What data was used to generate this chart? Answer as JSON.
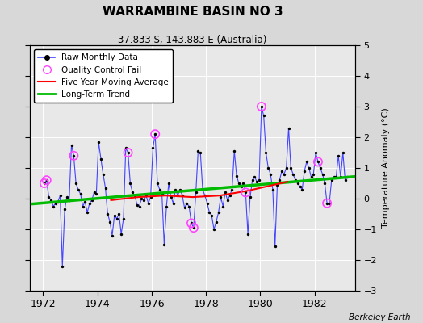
{
  "title": "WARRAMBINE BASIN NO 3",
  "subtitle": "37.833 S, 143.883 E (Australia)",
  "ylabel": "Temperature Anomaly (°C)",
  "attribution": "Berkeley Earth",
  "xlim": [
    1971.5,
    1983.5
  ],
  "ylim": [
    -3,
    5
  ],
  "yticks": [
    -3,
    -2,
    -1,
    0,
    1,
    2,
    3,
    4,
    5
  ],
  "xticks": [
    1972,
    1974,
    1976,
    1978,
    1980,
    1982
  ],
  "bg_color": "#d8d8d8",
  "plot_bg_color": "#e8e8e8",
  "raw_line_color": "#4444ff",
  "raw_dot_color": "#000000",
  "qc_fail_color": "#ff44ff",
  "moving_avg_color": "#ff0000",
  "trend_color": "#00bb00",
  "raw_data": [
    [
      1972.042,
      0.5
    ],
    [
      1972.125,
      0.6
    ],
    [
      1972.208,
      0.05
    ],
    [
      1972.292,
      -0.05
    ],
    [
      1972.375,
      -0.25
    ],
    [
      1972.458,
      -0.15
    ],
    [
      1972.542,
      -0.1
    ],
    [
      1972.625,
      0.1
    ],
    [
      1972.708,
      -2.2
    ],
    [
      1972.792,
      -0.35
    ],
    [
      1972.875,
      0.05
    ],
    [
      1972.958,
      -0.05
    ],
    [
      1973.042,
      1.75
    ],
    [
      1973.125,
      1.4
    ],
    [
      1973.208,
      0.5
    ],
    [
      1973.292,
      0.3
    ],
    [
      1973.375,
      0.15
    ],
    [
      1973.458,
      -0.25
    ],
    [
      1973.542,
      -0.1
    ],
    [
      1973.625,
      -0.45
    ],
    [
      1973.708,
      -0.15
    ],
    [
      1973.792,
      -0.05
    ],
    [
      1973.875,
      0.2
    ],
    [
      1973.958,
      0.15
    ],
    [
      1974.042,
      1.85
    ],
    [
      1974.125,
      1.3
    ],
    [
      1974.208,
      0.8
    ],
    [
      1974.292,
      0.35
    ],
    [
      1974.375,
      -0.5
    ],
    [
      1974.458,
      -0.75
    ],
    [
      1974.542,
      -1.2
    ],
    [
      1974.625,
      -0.55
    ],
    [
      1974.708,
      -0.65
    ],
    [
      1974.792,
      -0.5
    ],
    [
      1974.875,
      -1.15
    ],
    [
      1974.958,
      -0.65
    ],
    [
      1975.042,
      1.65
    ],
    [
      1975.125,
      1.5
    ],
    [
      1975.208,
      0.5
    ],
    [
      1975.292,
      0.2
    ],
    [
      1975.375,
      0.1
    ],
    [
      1975.458,
      -0.2
    ],
    [
      1975.542,
      -0.25
    ],
    [
      1975.625,
      0.0
    ],
    [
      1975.708,
      -0.05
    ],
    [
      1975.792,
      0.1
    ],
    [
      1975.875,
      -0.15
    ],
    [
      1975.958,
      0.05
    ],
    [
      1976.042,
      1.65
    ],
    [
      1976.125,
      2.1
    ],
    [
      1976.208,
      0.5
    ],
    [
      1976.292,
      0.3
    ],
    [
      1976.375,
      0.15
    ],
    [
      1976.458,
      -1.5
    ],
    [
      1976.542,
      -0.25
    ],
    [
      1976.625,
      0.5
    ],
    [
      1976.708,
      0.05
    ],
    [
      1976.792,
      -0.15
    ],
    [
      1976.875,
      0.3
    ],
    [
      1976.958,
      0.1
    ],
    [
      1977.042,
      0.3
    ],
    [
      1977.125,
      0.1
    ],
    [
      1977.208,
      -0.3
    ],
    [
      1977.292,
      -0.15
    ],
    [
      1977.375,
      -0.25
    ],
    [
      1977.458,
      -0.8
    ],
    [
      1977.542,
      -0.95
    ],
    [
      1977.625,
      0.2
    ],
    [
      1977.708,
      1.55
    ],
    [
      1977.792,
      1.5
    ],
    [
      1977.875,
      0.3
    ],
    [
      1977.958,
      0.1
    ],
    [
      1978.042,
      -0.15
    ],
    [
      1978.125,
      -0.45
    ],
    [
      1978.208,
      -0.55
    ],
    [
      1978.292,
      -1.0
    ],
    [
      1978.375,
      -0.75
    ],
    [
      1978.458,
      -0.45
    ],
    [
      1978.542,
      0.05
    ],
    [
      1978.625,
      -0.25
    ],
    [
      1978.708,
      0.2
    ],
    [
      1978.792,
      -0.05
    ],
    [
      1978.875,
      0.1
    ],
    [
      1978.958,
      0.3
    ],
    [
      1979.042,
      1.55
    ],
    [
      1979.125,
      0.75
    ],
    [
      1979.208,
      0.5
    ],
    [
      1979.292,
      0.4
    ],
    [
      1979.375,
      0.5
    ],
    [
      1979.458,
      0.2
    ],
    [
      1979.542,
      -1.15
    ],
    [
      1979.625,
      0.05
    ],
    [
      1979.708,
      0.6
    ],
    [
      1979.792,
      0.7
    ],
    [
      1979.875,
      0.55
    ],
    [
      1979.958,
      0.6
    ],
    [
      1980.042,
      3.0
    ],
    [
      1980.125,
      2.7
    ],
    [
      1980.208,
      1.5
    ],
    [
      1980.292,
      1.0
    ],
    [
      1980.375,
      0.8
    ],
    [
      1980.458,
      0.3
    ],
    [
      1980.542,
      -1.55
    ],
    [
      1980.625,
      0.45
    ],
    [
      1980.708,
      0.6
    ],
    [
      1980.792,
      0.9
    ],
    [
      1980.875,
      0.8
    ],
    [
      1980.958,
      1.0
    ],
    [
      1981.042,
      2.3
    ],
    [
      1981.125,
      1.0
    ],
    [
      1981.208,
      0.8
    ],
    [
      1981.292,
      0.6
    ],
    [
      1981.375,
      0.5
    ],
    [
      1981.458,
      0.4
    ],
    [
      1981.542,
      0.3
    ],
    [
      1981.625,
      0.9
    ],
    [
      1981.708,
      1.2
    ],
    [
      1981.792,
      1.0
    ],
    [
      1981.875,
      0.7
    ],
    [
      1981.958,
      0.8
    ],
    [
      1982.042,
      1.5
    ],
    [
      1982.125,
      1.2
    ],
    [
      1982.208,
      1.0
    ],
    [
      1982.292,
      0.8
    ],
    [
      1982.375,
      0.5
    ],
    [
      1982.458,
      -0.15
    ],
    [
      1982.542,
      -0.15
    ],
    [
      1982.625,
      0.6
    ],
    [
      1982.708,
      0.7
    ],
    [
      1982.792,
      0.7
    ],
    [
      1982.875,
      1.4
    ],
    [
      1982.958,
      0.7
    ],
    [
      1983.042,
      1.5
    ],
    [
      1983.125,
      0.6
    ],
    [
      1983.208,
      0.7
    ]
  ],
  "qc_fail_points": [
    [
      1972.042,
      0.5
    ],
    [
      1972.125,
      0.6
    ],
    [
      1973.125,
      1.4
    ],
    [
      1975.125,
      1.5
    ],
    [
      1976.125,
      2.1
    ],
    [
      1977.458,
      -0.8
    ],
    [
      1977.542,
      -0.95
    ],
    [
      1979.458,
      0.2
    ],
    [
      1980.042,
      3.0
    ],
    [
      1982.125,
      1.2
    ],
    [
      1982.458,
      -0.15
    ]
  ],
  "trend_x": [
    1971.5,
    1983.5
  ],
  "trend_y": [
    -0.18,
    0.72
  ],
  "moving_avg_x": [
    1974.5,
    1975.5,
    1976.5,
    1977.5,
    1978.5,
    1979.5,
    1980.5,
    1981.0
  ],
  "moving_avg_y": [
    -0.05,
    0.05,
    0.1,
    0.05,
    0.1,
    0.25,
    0.45,
    0.55
  ]
}
